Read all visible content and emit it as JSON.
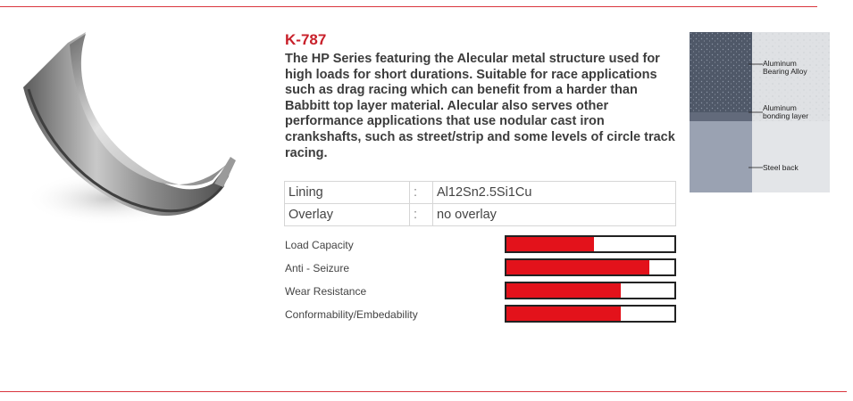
{
  "product": {
    "code": "K-787",
    "description": "The HP Series featuring the Alecular metal structure used for high loads for short durations. Suitable for race applications such as drag racing which can benefit from a harder than Babbitt top layer material. Alecular also serves other performance applications that use nodular cast iron crankshafts, such as street/strip and some levels of circle track racing.",
    "image_icon": "bearing-shell-icon"
  },
  "specs": [
    {
      "label": "Lining",
      "sep": ":",
      "value": "Al12Sn2.5Si1Cu"
    },
    {
      "label": "Overlay",
      "sep": ":",
      "value": "no overlay"
    }
  ],
  "ratings": [
    {
      "label": "Load Capacity",
      "level": 0.52
    },
    {
      "label": "Anti - Seizure",
      "level": 0.85
    },
    {
      "label": "Wear Resistance",
      "level": 0.68
    },
    {
      "label": "Conformability/Embedability",
      "level": 0.68
    }
  ],
  "diagram": {
    "layers": [
      {
        "line1": "Aluminum",
        "line2": "Bearing Alloy"
      },
      {
        "line1": "Aluminum",
        "line2": "bonding layer"
      },
      {
        "line1": "Steel back",
        "line2": ""
      }
    ]
  },
  "colors": {
    "accent": "#c8202a",
    "bar_fill": "#e3121b",
    "rule": "#d9363e"
  }
}
